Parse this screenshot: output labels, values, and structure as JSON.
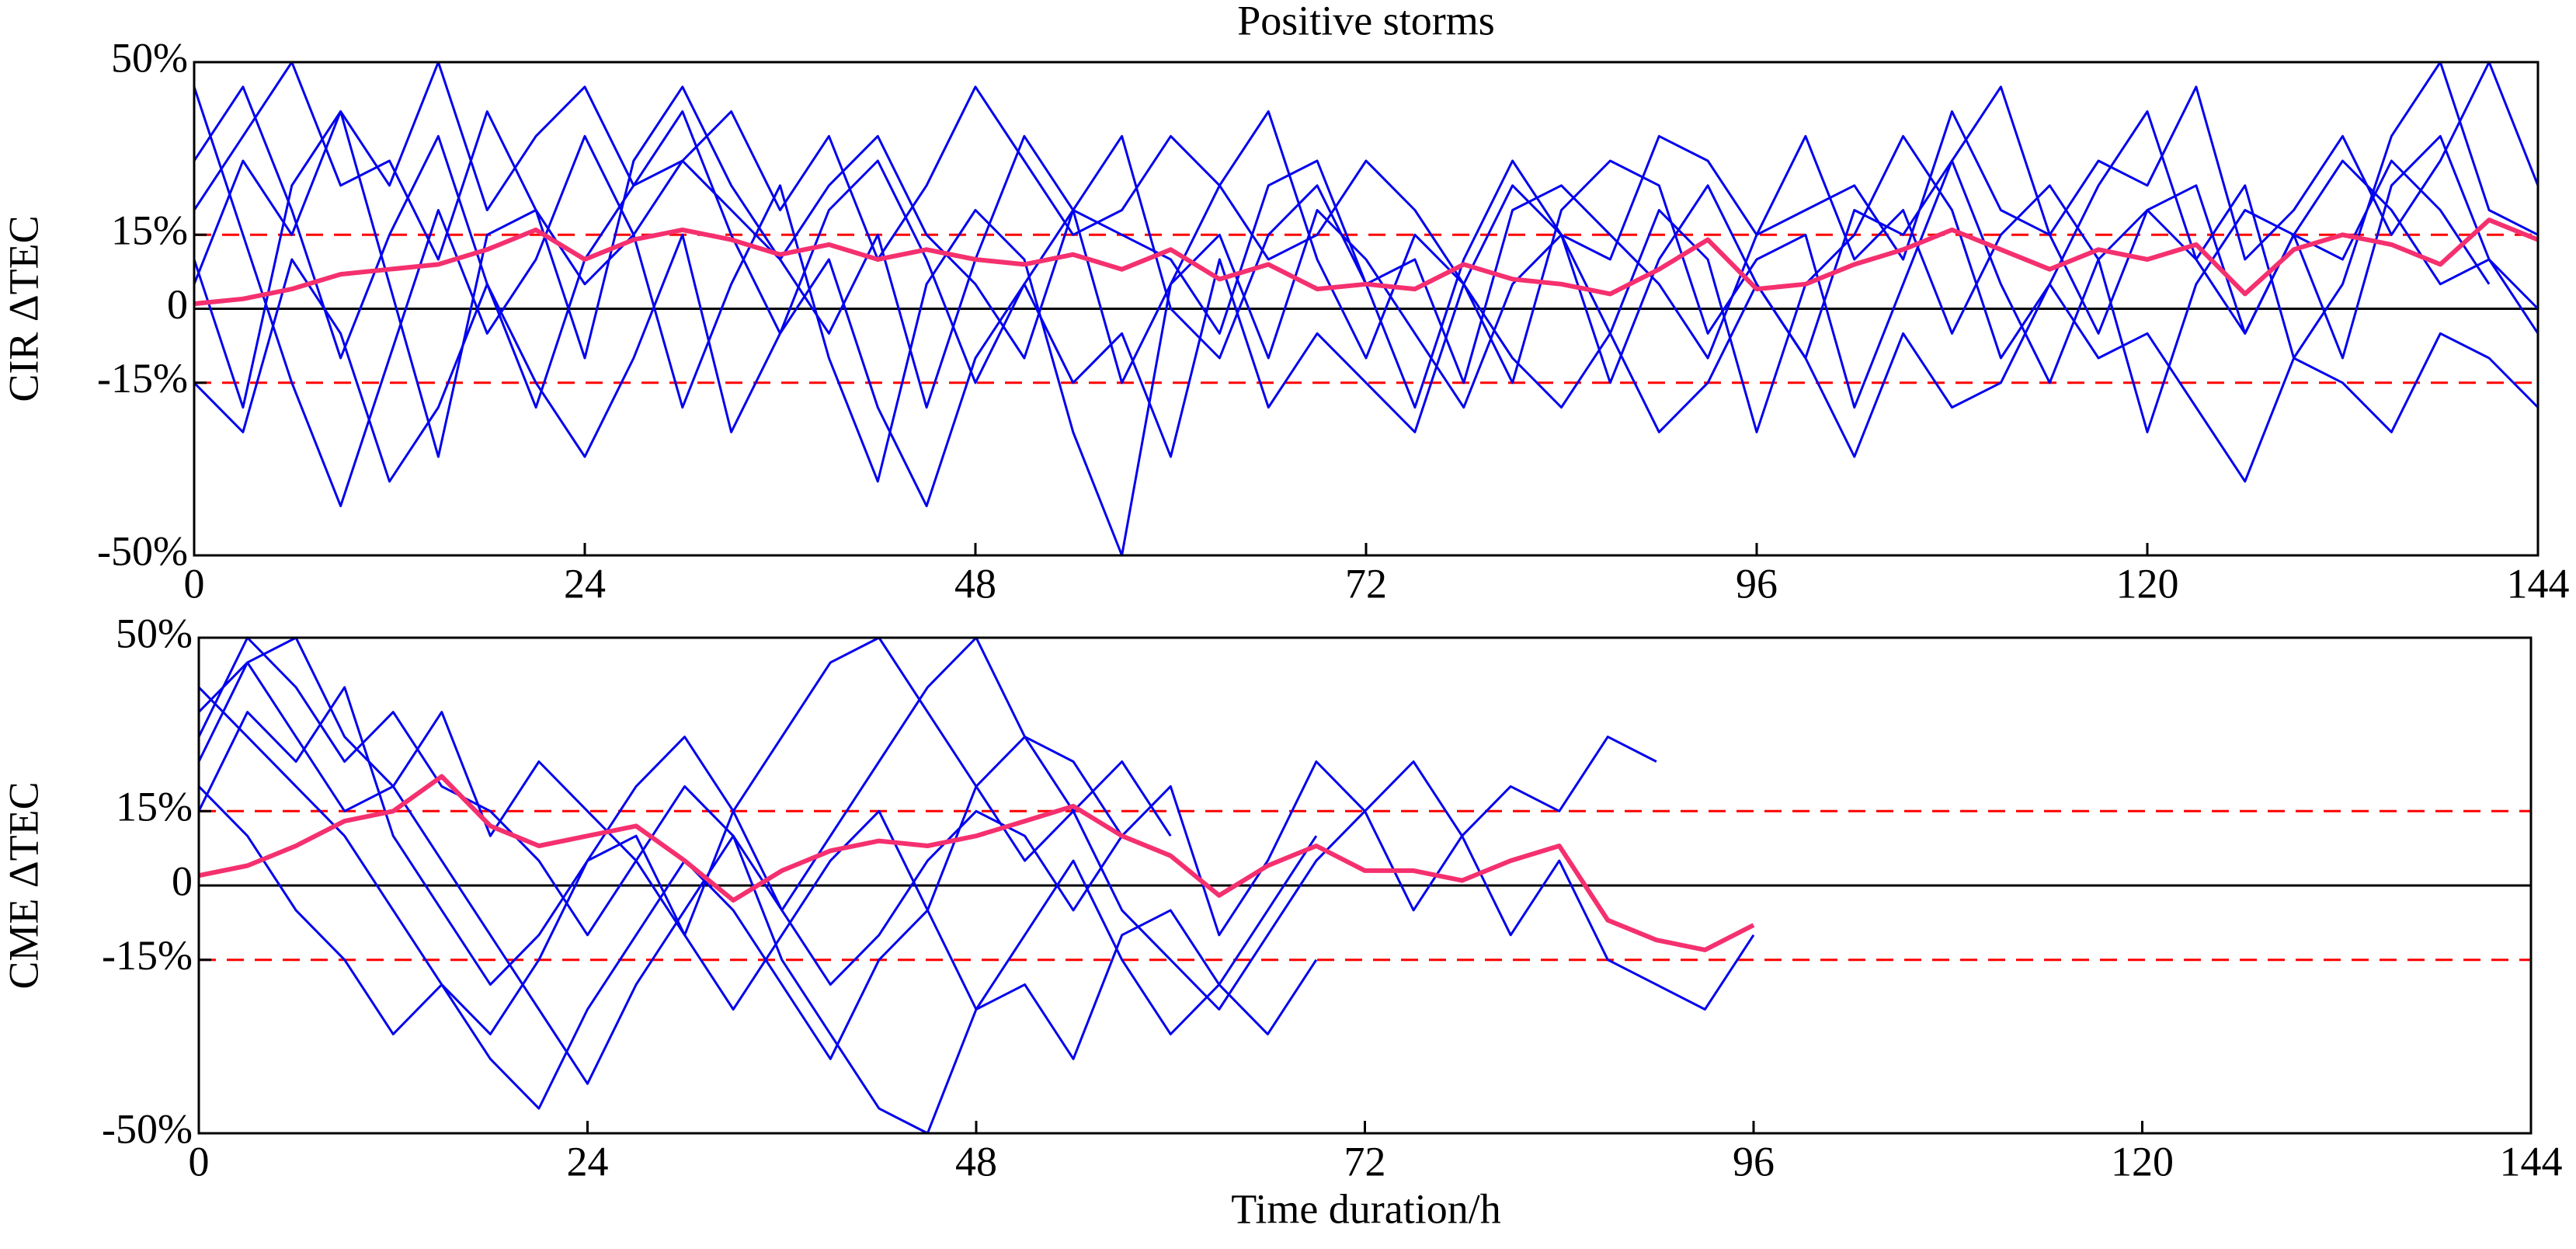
{
  "chart_data": [
    {
      "type": "line",
      "title": "Positive storms",
      "ylabel": "CIR ΔTEC",
      "x": [
        0,
        3,
        6,
        9,
        12,
        15,
        18,
        21,
        24,
        27,
        30,
        33,
        36,
        39,
        42,
        45,
        48,
        51,
        54,
        57,
        60,
        63,
        66,
        69,
        72,
        75,
        78,
        81,
        84,
        87,
        90,
        93,
        96,
        99,
        102,
        105,
        108,
        111,
        114,
        117,
        120,
        123,
        126,
        129,
        132,
        135,
        138,
        141,
        144
      ],
      "xlim": [
        0,
        144
      ],
      "xticks": [
        0,
        24,
        48,
        72,
        96,
        120,
        144
      ],
      "ylim": [
        -50,
        50
      ],
      "yticks": [
        {
          "value": -50,
          "label": "-50%"
        },
        {
          "value": -15,
          "label": "-15%"
        },
        0,
        {
          "value": 15,
          "label": "15%"
        },
        {
          "value": 50,
          "label": "50%"
        }
      ],
      "hlines": [
        {
          "y": 15,
          "color": "#ff0000",
          "style": "dashed"
        },
        {
          "y": 0,
          "color": "#000000",
          "style": "solid"
        },
        {
          "y": -15,
          "color": "#ff0000",
          "style": "dashed"
        }
      ],
      "series": [
        {
          "color": "#0000ee",
          "values": [
            30,
            45,
            20,
            -10,
            15,
            35,
            5,
            -20,
            10,
            25,
            40,
            15,
            -5,
            20,
            30,
            10,
            -15,
            5,
            20,
            35,
            0,
            -10,
            15,
            25,
            5,
            -20,
            10,
            30,
            15,
            -5,
            20,
            10,
            -25,
            5,
            15,
            35,
            20,
            -10,
            5,
            25,
            40,
            10,
            -5,
            15,
            30,
            20,
            5,
            10,
            0
          ]
        },
        {
          "color": "#0000ee",
          "values": [
            10,
            -20,
            25,
            40,
            5,
            -30,
            15,
            20,
            -10,
            30,
            45,
            25,
            10,
            -5,
            15,
            -20,
            10,
            35,
            20,
            -15,
            5,
            25,
            40,
            10,
            -10,
            15,
            5,
            -15,
            20,
            30,
            25,
            -5,
            10,
            15,
            -20,
            5,
            30,
            45,
            15,
            -5,
            20,
            10,
            25,
            -10,
            5,
            35,
            50,
            20,
            15
          ]
        },
        {
          "color": "#0000ee",
          "values": [
            45,
            15,
            -15,
            -40,
            -10,
            20,
            -5,
            10,
            35,
            15,
            -20,
            5,
            25,
            -10,
            -35,
            5,
            20,
            10,
            -25,
            -50,
            5,
            15,
            -10,
            20,
            10,
            -5,
            -20,
            5,
            15,
            -15,
            10,
            25,
            5,
            -10,
            20,
            15,
            30,
            5,
            -15,
            10,
            20,
            25,
            -5,
            15,
            10,
            30,
            20,
            5,
            null
          ]
        },
        {
          "color": "#0000ee",
          "values": [
            20,
            35,
            50,
            25,
            30,
            10,
            40,
            20,
            5,
            15,
            30,
            20,
            10,
            25,
            35,
            15,
            5,
            -10,
            20,
            15,
            10,
            -5,
            25,
            30,
            5,
            10,
            -15,
            20,
            25,
            15,
            5,
            -10,
            15,
            35,
            10,
            20,
            -5,
            15,
            25,
            10,
            -25,
            5,
            20,
            15,
            -10,
            25,
            35,
            10,
            -5
          ]
        },
        {
          "color": "#0000ee",
          "values": [
            -15,
            -25,
            10,
            -5,
            -35,
            -20,
            5,
            -15,
            -30,
            -10,
            15,
            -25,
            -5,
            10,
            -20,
            -40,
            -10,
            5,
            -15,
            -5,
            -30,
            10,
            -20,
            -5,
            -15,
            -25,
            5,
            -10,
            -20,
            -5,
            -25,
            -15,
            5,
            -10,
            -30,
            -5,
            -20,
            -15,
            5,
            -10,
            -5,
            -20,
            -35,
            -10,
            -15,
            -25,
            -5,
            -10,
            -20
          ]
        },
        {
          "color": "#0000ee",
          "values": [
            5,
            30,
            15,
            40,
            25,
            50,
            20,
            35,
            45,
            25,
            30,
            40,
            20,
            35,
            10,
            25,
            45,
            30,
            15,
            20,
            35,
            25,
            10,
            15,
            30,
            20,
            5,
            25,
            15,
            10,
            35,
            30,
            15,
            20,
            25,
            10,
            40,
            20,
            15,
            30,
            25,
            45,
            10,
            20,
            35,
            15,
            30,
            50,
            25
          ]
        },
        {
          "color": "#f5306f",
          "width": 3,
          "values": [
            1,
            2,
            4,
            7,
            8,
            9,
            12,
            16,
            10,
            14,
            16,
            14,
            11,
            13,
            10,
            12,
            10,
            9,
            11,
            8,
            12,
            6,
            9,
            4,
            5,
            4,
            9,
            6,
            5,
            3,
            8,
            14,
            4,
            5,
            9,
            12,
            16,
            12,
            8,
            12,
            10,
            13,
            3,
            12,
            15,
            13,
            9,
            18,
            14
          ]
        }
      ]
    },
    {
      "type": "line",
      "ylabel": "CME ΔTEC",
      "xlabel": "Time duration/h",
      "x": [
        0,
        3,
        6,
        9,
        12,
        15,
        18,
        21,
        24,
        27,
        30,
        33,
        36,
        39,
        42,
        45,
        48,
        51,
        54,
        57,
        60,
        63,
        66,
        69,
        72,
        75,
        78,
        81,
        84,
        87,
        90,
        93,
        96
      ],
      "xlim": [
        0,
        144
      ],
      "xticks": [
        0,
        24,
        48,
        72,
        96,
        120,
        144
      ],
      "ylim": [
        -50,
        50
      ],
      "yticks": [
        {
          "value": -50,
          "label": "-50%"
        },
        {
          "value": -15,
          "label": "-15%"
        },
        0,
        {
          "value": 15,
          "label": "15%"
        },
        {
          "value": 50,
          "label": "50%"
        }
      ],
      "hlines": [
        {
          "y": 15,
          "color": "#ff0000",
          "style": "dashed"
        },
        {
          "y": 0,
          "color": "#000000",
          "style": "solid"
        },
        {
          "y": -15,
          "color": "#ff0000",
          "style": "dashed"
        }
      ],
      "series": [
        {
          "color": "#0000ee",
          "values": [
            40,
            30,
            20,
            10,
            -5,
            -20,
            -30,
            -15,
            5,
            10,
            -10,
            -25,
            -10,
            5,
            15,
            -5,
            20,
            30,
            25,
            10,
            null,
            null,
            null,
            null,
            null,
            null,
            null,
            null,
            null,
            null,
            null,
            null,
            null
          ]
        },
        {
          "color": "#0000ee",
          "values": [
            25,
            45,
            30,
            15,
            20,
            5,
            -10,
            -25,
            -40,
            -20,
            -5,
            10,
            -15,
            -30,
            -45,
            -50,
            -25,
            -10,
            5,
            -15,
            -30,
            -20,
            -5,
            10,
            null,
            null,
            null,
            null,
            null,
            null,
            null,
            null,
            null
          ]
        },
        {
          "color": "#0000ee",
          "values": [
            15,
            35,
            25,
            40,
            10,
            -5,
            -20,
            -10,
            5,
            20,
            30,
            15,
            -5,
            -20,
            -10,
            5,
            15,
            10,
            -5,
            10,
            20,
            -10,
            5,
            25,
            15,
            -5,
            10,
            20,
            15,
            30,
            25,
            null,
            null
          ]
        },
        {
          "color": "#0000ee",
          "values": [
            30,
            50,
            40,
            25,
            35,
            20,
            15,
            5,
            -10,
            5,
            20,
            10,
            -5,
            10,
            25,
            40,
            50,
            30,
            15,
            -5,
            -15,
            -25,
            -10,
            5,
            15,
            25,
            10,
            -10,
            5,
            -15,
            -20,
            -25,
            -10
          ]
        },
        {
          "color": "#0000ee",
          "values": [
            20,
            10,
            -5,
            -15,
            -30,
            -20,
            -35,
            -45,
            -25,
            -10,
            5,
            -5,
            -20,
            -35,
            -15,
            -5,
            -25,
            -20,
            -35,
            -10,
            -5,
            -20,
            -30,
            -15,
            null,
            null,
            null,
            null,
            null,
            null,
            null,
            null,
            null
          ]
        },
        {
          "color": "#0000ee",
          "values": [
            35,
            45,
            50,
            30,
            20,
            35,
            10,
            25,
            15,
            5,
            -10,
            15,
            30,
            45,
            50,
            35,
            20,
            5,
            15,
            25,
            10,
            null,
            null,
            null,
            null,
            null,
            null,
            null,
            null,
            null,
            null,
            null,
            null
          ]
        },
        {
          "color": "#f5306f",
          "width": 3,
          "values": [
            2,
            4,
            8,
            13,
            15,
            22,
            12,
            8,
            10,
            12,
            5,
            -3,
            3,
            7,
            9,
            8,
            10,
            13,
            16,
            10,
            6,
            -2,
            4,
            8,
            3,
            3,
            1,
            5,
            8,
            -7,
            -11,
            -13,
            -8
          ]
        }
      ]
    }
  ]
}
